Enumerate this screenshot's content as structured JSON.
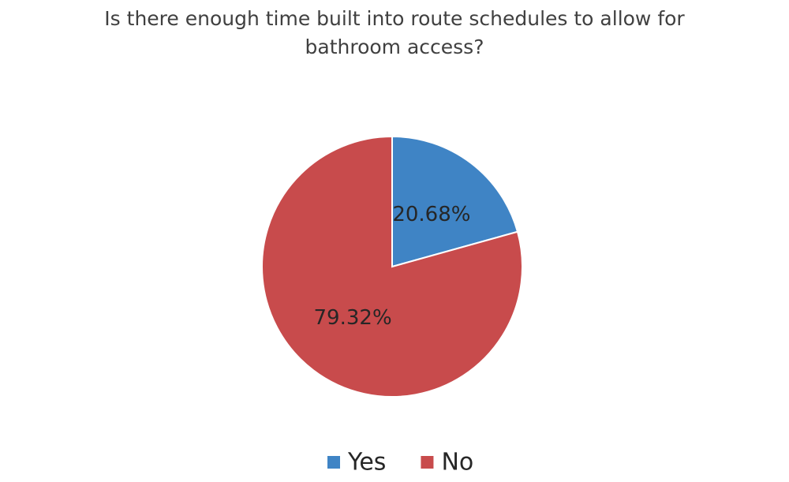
{
  "chart_data": {
    "type": "pie",
    "title": "Is there enough time built into route schedules to allow for bathroom access?",
    "categories": [
      "Yes",
      "No"
    ],
    "values": [
      20.68,
      79.32
    ],
    "value_labels": [
      "20.68%",
      "79.32%"
    ],
    "colors": [
      "#3f84c5",
      "#c84b4c"
    ],
    "legend": "bottom"
  }
}
